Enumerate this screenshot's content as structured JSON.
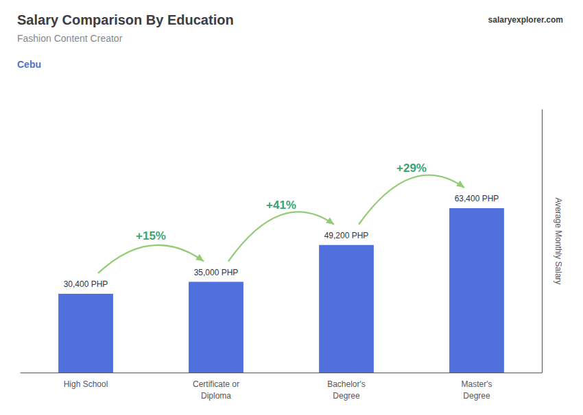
{
  "chart_data": {
    "type": "bar",
    "title": "Salary Comparison By Education",
    "subtitle": "Fashion Content Creator",
    "annotations": [
      "Cebu",
      "salaryexplorer.com"
    ],
    "ylabel": "Average Monthly Salary",
    "categories": [
      "High School",
      "Certificate or\nDiploma",
      "Bachelor's\nDegree",
      "Master's\nDegree"
    ],
    "values": [
      30400,
      35000,
      49200,
      63400
    ],
    "value_labels": [
      "30,400 PHP",
      "35,000 PHP",
      "49,200 PHP",
      "63,400 PHP"
    ],
    "data_labels": true,
    "changes": [
      {
        "value": 15,
        "label": "+15%"
      },
      {
        "value": 41,
        "label": "+41%"
      },
      {
        "value": 29,
        "label": "+29%"
      }
    ],
    "ylim": [
      0,
      101440
    ],
    "grid": false,
    "tick_labels": "x"
  }
}
